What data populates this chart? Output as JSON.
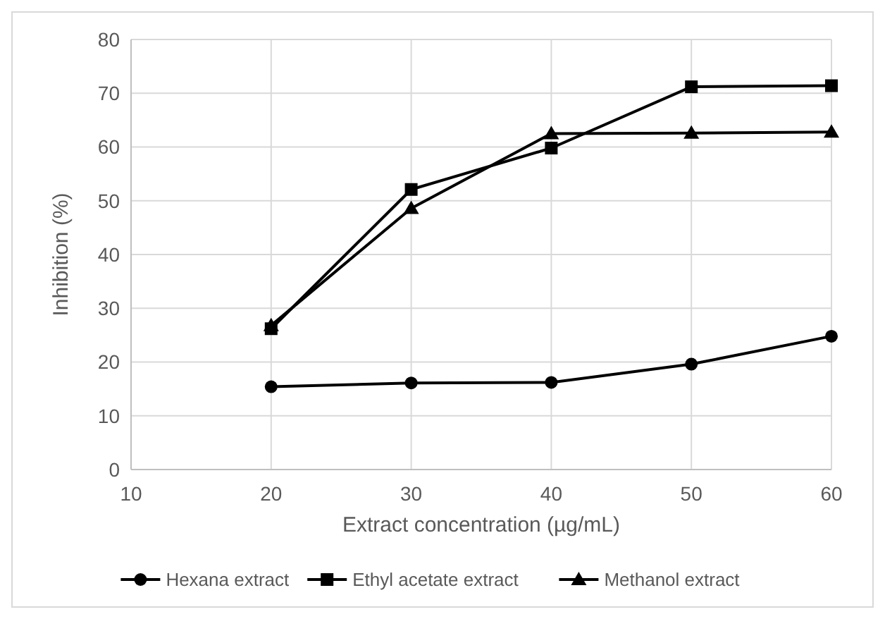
{
  "chart_data": {
    "type": "line",
    "xlabel": "Extract concentration (µg/mL)",
    "ylabel": "Inhibition (%)",
    "x": [
      20,
      30,
      40,
      50,
      60
    ],
    "series": [
      {
        "name": "Hexana extract",
        "color": "#000000",
        "marker": "circle",
        "values": [
          15.4,
          16.1,
          16.2,
          19.6,
          24.8
        ]
      },
      {
        "name": "Ethyl acetate extract",
        "color": "#000000",
        "marker": "square",
        "values": [
          26.2,
          52.1,
          59.8,
          71.2,
          71.4
        ]
      },
      {
        "name": "Methanol extract",
        "color": "#000000",
        "marker": "triangle",
        "values": [
          26.8,
          48.6,
          62.5,
          62.6,
          62.8
        ]
      }
    ],
    "xlim": [
      10,
      60
    ],
    "xticks": [
      10,
      20,
      30,
      40,
      50,
      60
    ],
    "ylim": [
      0,
      80
    ],
    "yticks": [
      0,
      10,
      20,
      30,
      40,
      50,
      60,
      70,
      80
    ],
    "grid": true,
    "legend": "bottom",
    "line_style": "solid"
  }
}
